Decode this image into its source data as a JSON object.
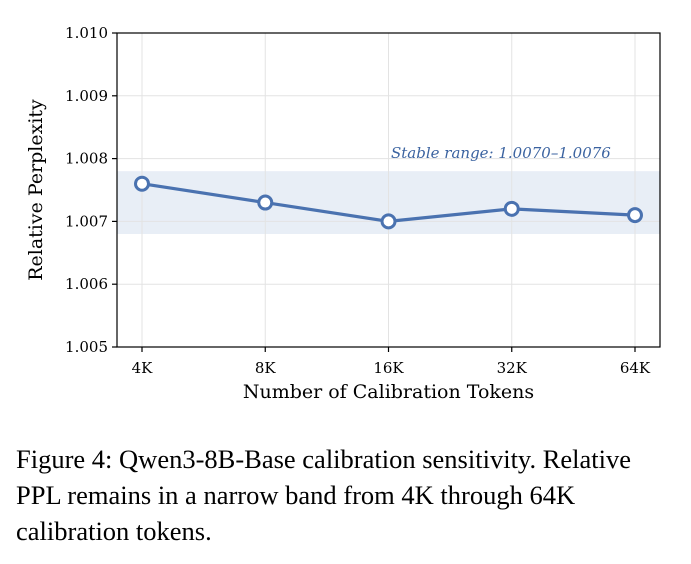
{
  "chart_data": {
    "type": "line",
    "categories": [
      "4K",
      "8K",
      "16K",
      "32K",
      "64K"
    ],
    "series": [
      {
        "values": [
          1.0076,
          1.0073,
          1.007,
          1.0072,
          1.0071
        ]
      }
    ],
    "xlabel": "Number of Calibration Tokens",
    "ylabel": "Relative Perplexity",
    "ylim": [
      1.005,
      1.01
    ],
    "yticks": [
      "1.005",
      "1.006",
      "1.007",
      "1.008",
      "1.009",
      "1.010"
    ],
    "band": [
      1.0068,
      1.0078
    ],
    "annotation": "Stable range: 1.0070–1.0076",
    "grid": true,
    "colors": {
      "line": "#4a72b0",
      "band": "#e8eef6",
      "grid": "#e3e3e3",
      "annotation": "#3b63a0"
    }
  },
  "caption": "Figure 4: Qwen3-8B-Base calibration sensitivity. Relative PPL remains in a narrow band from 4K through 64K calibration tokens."
}
